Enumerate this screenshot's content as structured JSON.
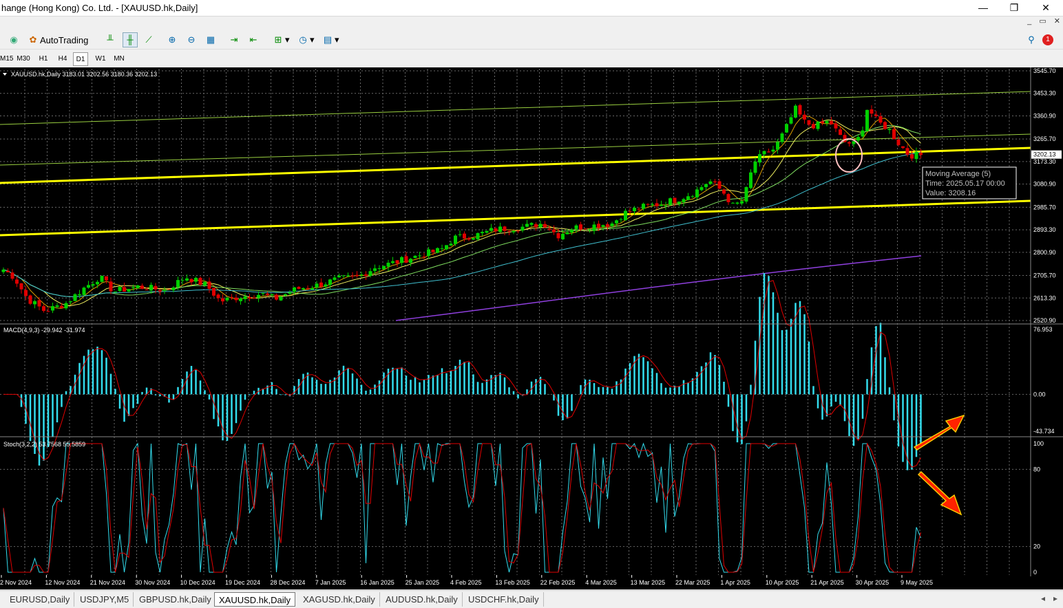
{
  "window": {
    "title": "hange (Hong Kong) Co. Ltd. - [XAUUSD.hk,Daily]",
    "minimize": "—",
    "maximize": "❐",
    "close": "✕"
  },
  "toolbar": {
    "autotrading_label": "AutoTrading"
  },
  "timeframes": [
    "M15",
    "M30",
    "H1",
    "H4",
    "D1",
    "W1",
    "MN"
  ],
  "active_timeframe": "D1",
  "chart": {
    "header": "XAUUSD.hk,Daily  3183.01 3202.56 3180.36 3202.13",
    "price_labels": [
      "3545.70",
      "3453.30",
      "3360.90",
      "3265.70",
      "3173.30",
      "3080.90",
      "2985.70",
      "2893.30",
      "2800.90",
      "2705.70",
      "2613.30",
      "2520.90"
    ],
    "current_price": "3202.13",
    "date_labels": [
      "2 Nov 2024",
      "12 Nov 2024",
      "21 Nov 2024",
      "30 Nov 2024",
      "10 Dec 2024",
      "19 Dec 2024",
      "28 Dec 2024",
      "7 Jan 2025",
      "16 Jan 2025",
      "25 Jan 2025",
      "4 Feb 2025",
      "13 Feb 2025",
      "22 Feb 2025",
      "4 Mar 2025",
      "13 Mar 2025",
      "22 Mar 2025",
      "1 Apr 2025",
      "10 Apr 2025",
      "21 Apr 2025",
      "30 Apr 2025",
      "9 May 2025"
    ],
    "tooltip": {
      "line1": "Moving Average (5)",
      "line2": "Time: 2025.05.17 00:00",
      "line3": "Value: 3208.16"
    },
    "colors": {
      "bull": "#00d000",
      "bear": "#e00000",
      "trendline": "#ffff00",
      "macd_hist": "#33ddee",
      "signal": "#e00000",
      "stoch_main": "#33ddee",
      "stoch_signal": "#e00000",
      "arrow": "#ff2200",
      "arrow_outline": "#ffcc00"
    }
  },
  "macd": {
    "header": "MACD(4,9,3) -29.942 -31.974",
    "labels": [
      "76.953",
      "0.00",
      "-43.734"
    ]
  },
  "stoch": {
    "header": "Stoch(3,2,2) 53.7568 55.5859",
    "labels": [
      "100",
      "80",
      "20",
      "0"
    ]
  },
  "tabs": [
    "EURUSD,Daily",
    "USDJPY,M5",
    "GBPUSD.hk,Daily",
    "XAUUSD.hk,Daily",
    "XAGUSD.hk,Daily",
    "AUDUSD.hk,Daily",
    "USDCHF.hk,Daily"
  ],
  "active_tab": "XAUUSD.hk,Daily",
  "notification_count": "1"
}
